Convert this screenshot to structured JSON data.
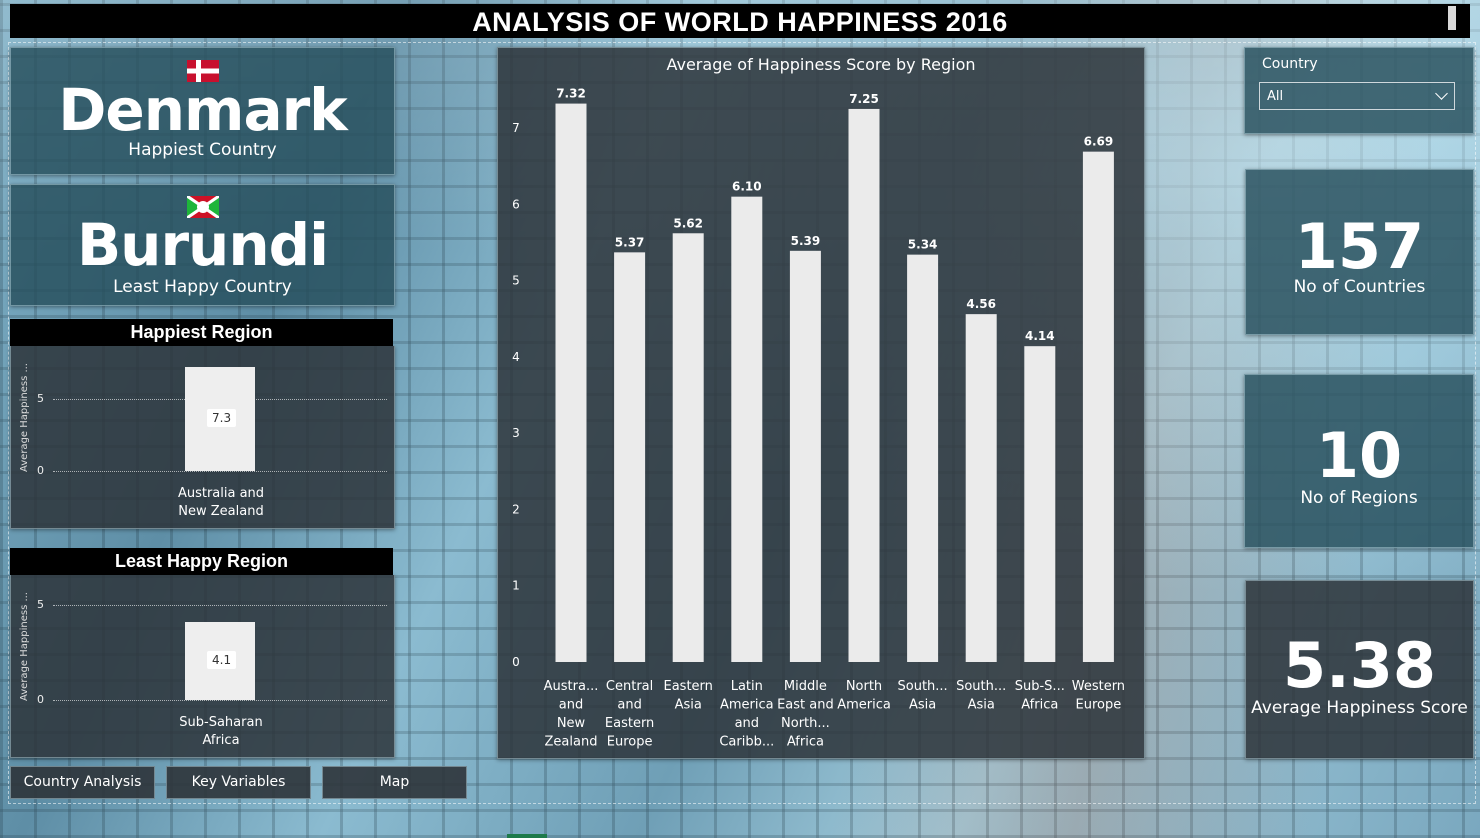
{
  "title": "ANALYSIS OF WORLD HAPPINESS 2016",
  "happiest": {
    "country": "Denmark",
    "label": "Happiest Country"
  },
  "least_happy": {
    "country": "Burundi",
    "label": "Least Happy Country"
  },
  "happiest_region": {
    "header": "Happiest Region",
    "y_axis_label": "Average Happiness ...",
    "y_ticks": [
      "5",
      "0"
    ],
    "category_line1": "Australia and",
    "category_line2": "New Zealand",
    "value_label": "7.3",
    "value": 7.3
  },
  "least_region": {
    "header": "Least Happy Region",
    "y_axis_label": "Average Happiness ...",
    "y_ticks": [
      "5",
      "0"
    ],
    "category_line1": "Sub-Saharan",
    "category_line2": "Africa",
    "value_label": "4.1",
    "value": 4.1
  },
  "nav": {
    "country_analysis": "Country Analysis",
    "key_variables": "Key Variables",
    "map": "Map"
  },
  "slicer": {
    "title": "Country",
    "value": "All"
  },
  "kpis": {
    "countries": {
      "value": "157",
      "label": "No of Countries"
    },
    "regions": {
      "value": "10",
      "label": "No of Regions"
    },
    "avg": {
      "value": "5.38",
      "label": "Average Happiness Score"
    }
  },
  "colors": {
    "bar": "#ebebeb",
    "panel": "#264e5c",
    "title_bg": "#000000"
  },
  "chart_data": {
    "type": "bar",
    "title": "Average of Happiness Score by Region",
    "categories": [
      [
        "Austra...",
        "and",
        "New",
        "Zealand"
      ],
      [
        "Central",
        "and",
        "Eastern",
        "Europe"
      ],
      [
        "Eastern",
        "Asia"
      ],
      [
        "Latin",
        "America",
        "and",
        "Caribb..."
      ],
      [
        "Middle",
        "East and",
        "North...",
        "Africa"
      ],
      [
        "North",
        "America"
      ],
      [
        "South...",
        "Asia"
      ],
      [
        "South...",
        "Asia"
      ],
      [
        "Sub-S...",
        "Africa"
      ],
      [
        "Western",
        "Europe"
      ]
    ],
    "values": [
      7.32,
      5.37,
      5.62,
      6.1,
      5.39,
      7.25,
      5.34,
      4.56,
      4.14,
      6.69
    ],
    "labels": [
      "7.32",
      "5.37",
      "5.62",
      "6.10",
      "5.39",
      "7.25",
      "5.34",
      "4.56",
      "4.14",
      "6.69"
    ],
    "y_ticks": [
      0,
      1,
      2,
      3,
      4,
      5,
      6,
      7
    ],
    "ylim": [
      0,
      7.3
    ],
    "grid": false
  }
}
